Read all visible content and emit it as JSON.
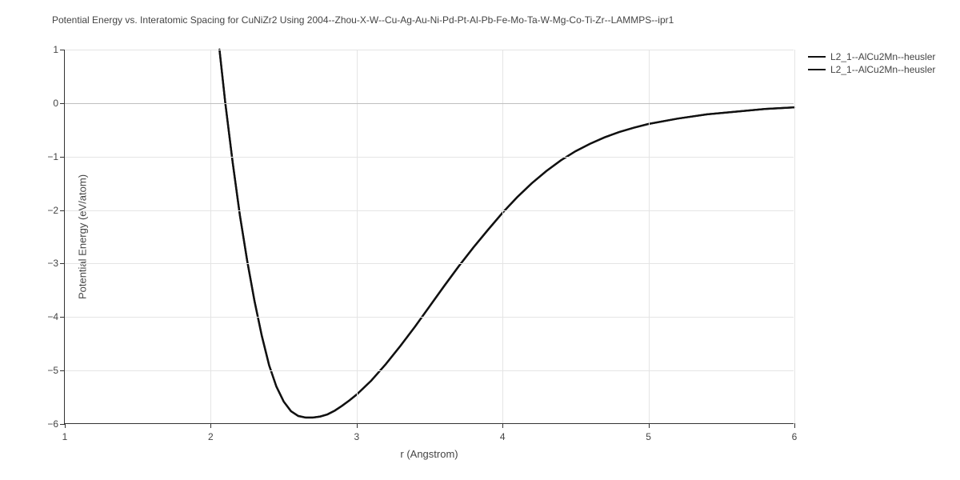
{
  "chart": {
    "type": "line",
    "title": "Potential Energy vs. Interatomic Spacing for CuNiZr2 Using 2004--Zhou-X-W--Cu-Ag-Au-Ni-Pd-Pt-Al-Pb-Fe-Mo-Ta-W-Mg-Co-Ti-Zr--LAMMPS--ipr1",
    "title_fontsize": 12,
    "title_color": "#444444",
    "xaxis": {
      "label": "r (Angstrom)",
      "min": 1,
      "max": 6,
      "ticks": [
        1,
        2,
        3,
        4,
        5,
        6
      ],
      "fontsize": 13,
      "tick_fontsize": 12
    },
    "yaxis": {
      "label": "Potential Energy (eV/atom)",
      "min": -6,
      "max": 1,
      "ticks": [
        -6,
        -5,
        -4,
        -3,
        -2,
        -1,
        0,
        1
      ],
      "fontsize": 13,
      "tick_fontsize": 12
    },
    "background_color": "#ffffff",
    "grid_color": "#e4e4e4",
    "zero_line_color": "#bfbfbf",
    "axis_color": "#333333",
    "series": [
      {
        "name": "L2_1--AlCu2Mn--heusler",
        "color": "#111111",
        "line_width": 2.4,
        "r": [
          2.06,
          2.1,
          2.15,
          2.2,
          2.25,
          2.3,
          2.35,
          2.4,
          2.45,
          2.5,
          2.55,
          2.6,
          2.65,
          2.7,
          2.75,
          2.8,
          2.85,
          2.9,
          2.95,
          3.0,
          3.1,
          3.2,
          3.3,
          3.4,
          3.5,
          3.6,
          3.7,
          3.8,
          3.9,
          4.0,
          4.1,
          4.2,
          4.3,
          4.4,
          4.5,
          4.6,
          4.7,
          4.8,
          4.9,
          5.0,
          5.2,
          5.4,
          5.6,
          5.8,
          6.0
        ],
        "E": [
          1.0,
          0.0,
          -1.1,
          -2.1,
          -2.95,
          -3.7,
          -4.35,
          -4.9,
          -5.3,
          -5.58,
          -5.76,
          -5.85,
          -5.88,
          -5.88,
          -5.86,
          -5.82,
          -5.75,
          -5.66,
          -5.56,
          -5.45,
          -5.19,
          -4.88,
          -4.54,
          -4.18,
          -3.8,
          -3.42,
          -3.05,
          -2.7,
          -2.37,
          -2.05,
          -1.76,
          -1.5,
          -1.27,
          -1.07,
          -0.9,
          -0.76,
          -0.64,
          -0.54,
          -0.46,
          -0.39,
          -0.29,
          -0.21,
          -0.16,
          -0.11,
          -0.08
        ]
      },
      {
        "name": "L2_1--AlCu2Mn--heusler",
        "color": "#111111",
        "line_width": 2.4,
        "r": [
          2.06,
          2.1,
          2.15,
          2.2,
          2.25,
          2.3,
          2.35,
          2.4,
          2.45,
          2.5,
          2.55,
          2.6,
          2.65,
          2.7,
          2.75,
          2.8,
          2.85,
          2.9,
          2.95,
          3.0,
          3.1,
          3.2,
          3.3,
          3.4,
          3.5,
          3.6,
          3.7,
          3.8,
          3.9,
          4.0,
          4.1,
          4.2,
          4.3,
          4.4,
          4.5,
          4.6,
          4.7,
          4.8,
          4.9,
          5.0,
          5.2,
          5.4,
          5.6,
          5.8,
          6.0
        ],
        "E": [
          1.0,
          0.0,
          -1.1,
          -2.1,
          -2.95,
          -3.7,
          -4.35,
          -4.9,
          -5.3,
          -5.58,
          -5.76,
          -5.85,
          -5.88,
          -5.88,
          -5.86,
          -5.82,
          -5.75,
          -5.66,
          -5.56,
          -5.45,
          -5.19,
          -4.88,
          -4.54,
          -4.18,
          -3.8,
          -3.42,
          -3.05,
          -2.7,
          -2.37,
          -2.05,
          -1.76,
          -1.5,
          -1.27,
          -1.07,
          -0.9,
          -0.76,
          -0.64,
          -0.54,
          -0.46,
          -0.39,
          -0.29,
          -0.21,
          -0.16,
          -0.11,
          -0.08
        ]
      }
    ],
    "legend": {
      "position": "right",
      "items": [
        "L2_1--AlCu2Mn--heusler",
        "L2_1--AlCu2Mn--heusler"
      ],
      "fontsize": 12
    }
  }
}
